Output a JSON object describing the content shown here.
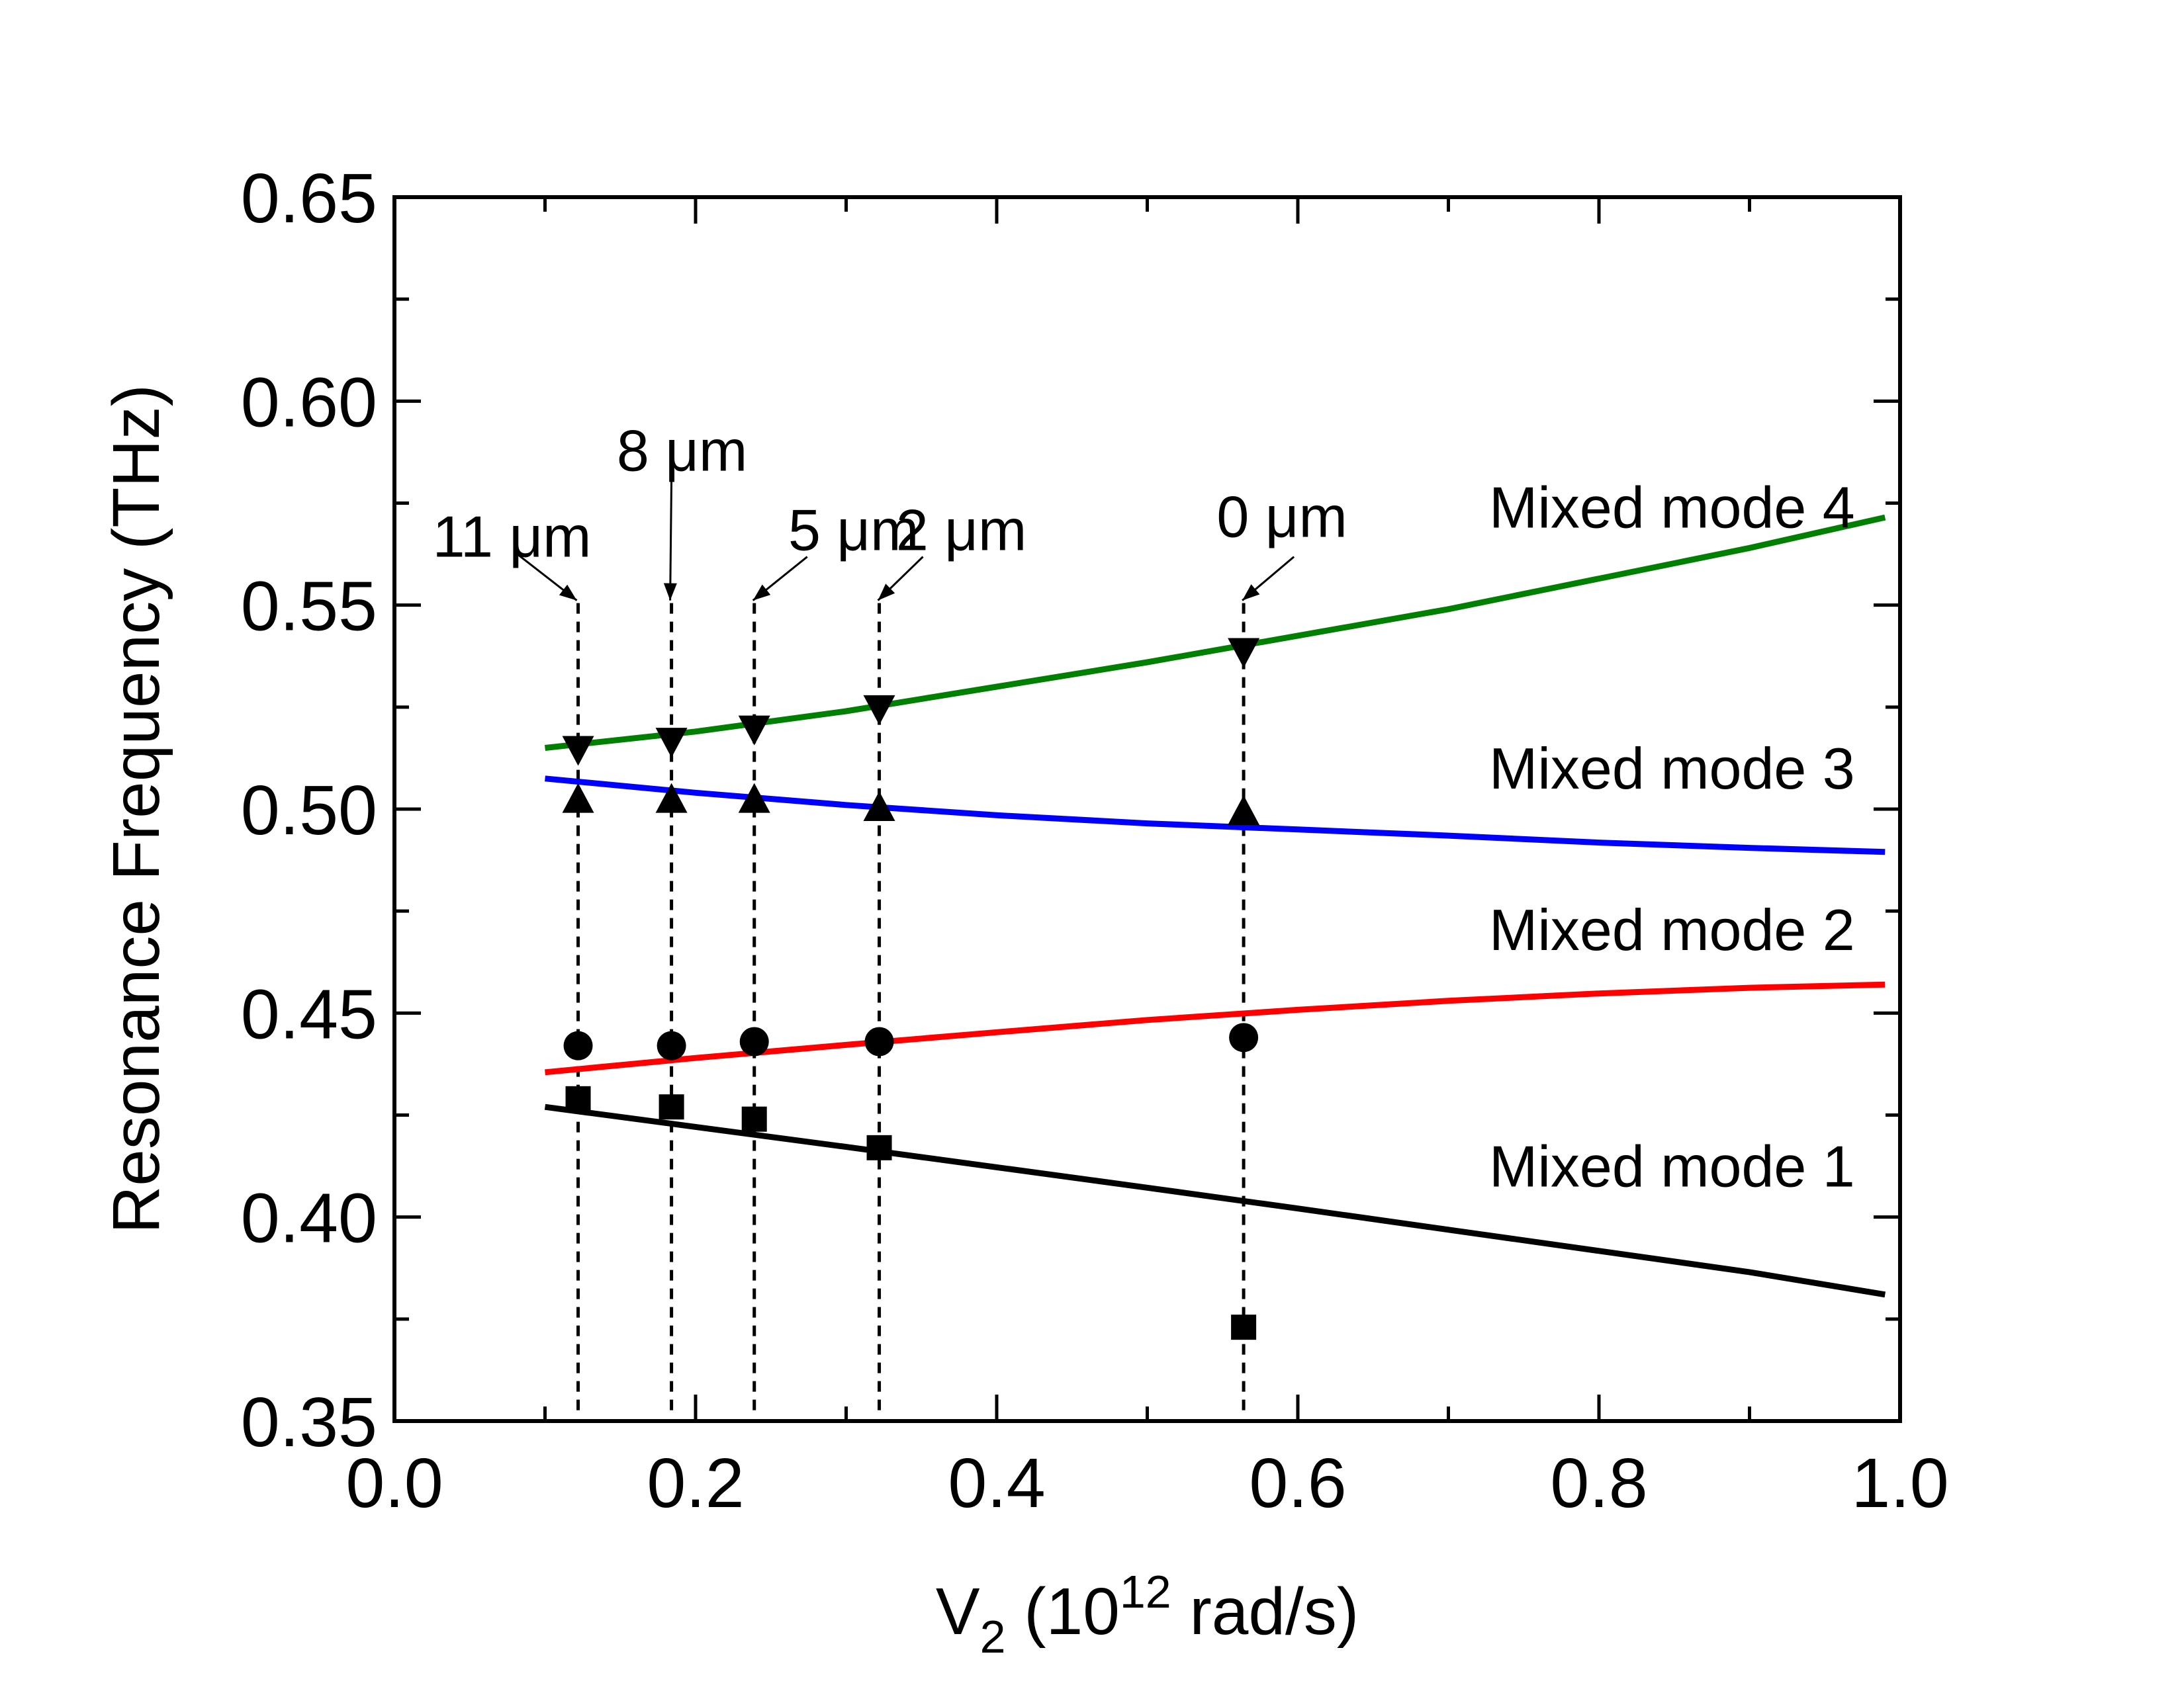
{
  "chart_data": {
    "type": "line",
    "xlabel": {
      "prefix": "V",
      "sub": "2",
      "open": " (10",
      "sup": "12",
      "close": " rad/s)"
    },
    "ylabel": "Resonance Frequency (THz)",
    "xlim": [
      0.0,
      1.0
    ],
    "ylim": [
      0.35,
      0.65
    ],
    "xticks": [
      "0.0",
      "0.2",
      "0.4",
      "0.6",
      "0.8",
      "1.0"
    ],
    "xtick_values": [
      0.0,
      0.2,
      0.4,
      0.6,
      0.8,
      1.0
    ],
    "yticks": [
      "0.35",
      "0.40",
      "0.45",
      "0.50",
      "0.55",
      "0.60",
      "0.65"
    ],
    "ytick_values": [
      0.35,
      0.4,
      0.45,
      0.5,
      0.55,
      0.6,
      0.65
    ],
    "series": [
      {
        "name": "Mixed mode 1",
        "color": "#000000",
        "marker": "square",
        "curve_x": [
          0.1,
          0.2,
          0.3,
          0.4,
          0.5,
          0.6,
          0.7,
          0.8,
          0.9,
          0.99
        ],
        "curve_y": [
          0.427,
          0.4221,
          0.4172,
          0.4122,
          0.4072,
          0.4021,
          0.3969,
          0.3917,
          0.3865,
          0.381
        ],
        "points_x": [
          0.122,
          0.184,
          0.239,
          0.322,
          0.564
        ],
        "points_y": [
          0.429,
          0.427,
          0.424,
          0.417,
          0.373
        ]
      },
      {
        "name": "Mixed mode 2",
        "color": "#ff0000",
        "marker": "circle",
        "curve_x": [
          0.1,
          0.2,
          0.3,
          0.4,
          0.5,
          0.6,
          0.7,
          0.8,
          0.9,
          0.99
        ],
        "curve_y": [
          0.4355,
          0.439,
          0.4422,
          0.4453,
          0.4483,
          0.4508,
          0.453,
          0.4548,
          0.4562,
          0.457
        ],
        "points_x": [
          0.122,
          0.184,
          0.239,
          0.322,
          0.564
        ],
        "points_y": [
          0.442,
          0.442,
          0.443,
          0.443,
          0.444
        ]
      },
      {
        "name": "Mixed mode 3",
        "color": "#0000ff",
        "marker": "triangle-up",
        "curve_x": [
          0.1,
          0.2,
          0.3,
          0.4,
          0.5,
          0.6,
          0.7,
          0.8,
          0.9,
          0.99
        ],
        "curve_y": [
          0.5075,
          0.504,
          0.501,
          0.4985,
          0.4965,
          0.495,
          0.4935,
          0.4918,
          0.4905,
          0.4895
        ],
        "points_x": [
          0.122,
          0.184,
          0.239,
          0.322,
          0.564
        ],
        "points_y": [
          0.502,
          0.502,
          0.502,
          0.5,
          0.499
        ]
      },
      {
        "name": "Mixed mode 4",
        "color": "#008000",
        "marker": "triangle-down",
        "curve_x": [
          0.1,
          0.2,
          0.3,
          0.4,
          0.5,
          0.6,
          0.7,
          0.8,
          0.9,
          0.99
        ],
        "curve_y": [
          0.515,
          0.519,
          0.524,
          0.53,
          0.536,
          0.5425,
          0.549,
          0.5565,
          0.564,
          0.5715
        ],
        "points_x": [
          0.122,
          0.184,
          0.239,
          0.322,
          0.564
        ],
        "points_y": [
          0.515,
          0.517,
          0.52,
          0.525,
          0.539
        ]
      }
    ],
    "mode_labels": [
      {
        "text": "Mixed mode 4",
        "x": 0.97,
        "y": 0.569
      },
      {
        "text": "Mixed mode 3",
        "x": 0.97,
        "y": 0.505
      },
      {
        "text": "Mixed mode 2",
        "x": 0.97,
        "y": 0.4655
      },
      {
        "text": "Mixed mode 1",
        "x": 0.97,
        "y": 0.4075
      }
    ],
    "thickness_markers": [
      {
        "label": "11 μm",
        "x": 0.122
      },
      {
        "label": "8 μm",
        "x": 0.184
      },
      {
        "label": "5 μm",
        "x": 0.239
      },
      {
        "label": "2 μm",
        "x": 0.322
      },
      {
        "label": "0 μm",
        "x": 0.564
      }
    ]
  }
}
